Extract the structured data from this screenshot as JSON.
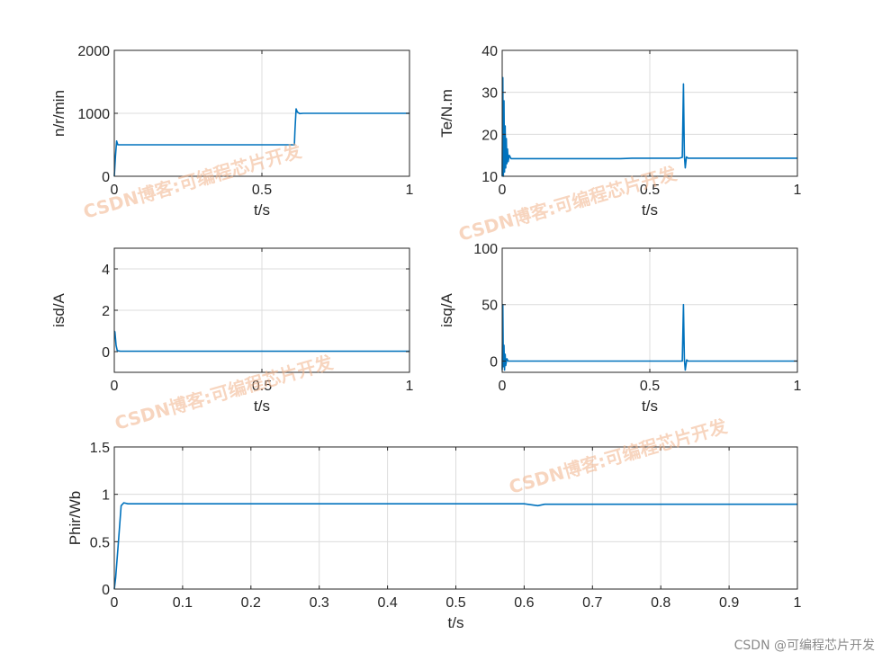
{
  "watermark": {
    "text": "CSDN博客:可编程芯片开发",
    "credit": "CSDN @可编程芯片开发",
    "color": "#f2b48c"
  },
  "colors": {
    "line": "#0072bd",
    "grid": "#dcdcdc",
    "axis": "#262626"
  },
  "chart_data": [
    {
      "type": "line",
      "xlabel": "t/s",
      "ylabel": "n/r/min",
      "xlim": [
        0,
        1
      ],
      "ylim": [
        0,
        2000
      ],
      "xticks": [
        0,
        0.5,
        1
      ],
      "yticks": [
        0,
        1000,
        2000
      ],
      "xticklabels": [
        "0",
        "0.5",
        "1"
      ],
      "yticklabels": [
        "0",
        "1000",
        "2000"
      ],
      "grid": true,
      "series": [
        {
          "x": [
            0,
            0.004,
            0.008,
            0.012,
            0.02,
            0.1,
            0.3,
            0.5,
            0.61,
            0.612,
            0.616,
            0.62,
            0.628,
            0.64,
            0.7,
            0.85,
            1.0
          ],
          "y": [
            0,
            320,
            560,
            500,
            500,
            500,
            500,
            500,
            500,
            720,
            1070,
            1020,
            995,
            1000,
            1000,
            1000,
            1000
          ]
        }
      ]
    },
    {
      "type": "line",
      "xlabel": "t/s",
      "ylabel": "Te/N.m",
      "xlim": [
        0,
        1
      ],
      "ylim": [
        10,
        40
      ],
      "xticks": [
        0,
        0.5,
        1
      ],
      "yticks": [
        10,
        20,
        30,
        40
      ],
      "xticklabels": [
        "0",
        "0.5",
        "1"
      ],
      "yticklabels": [
        "10",
        "20",
        "30",
        "40"
      ],
      "grid": true,
      "series": [
        {
          "x": [
            0,
            0.002,
            0.004,
            0.006,
            0.008,
            0.01,
            0.012,
            0.014,
            0.016,
            0.018,
            0.02,
            0.024,
            0.03,
            0.05,
            0.2,
            0.4,
            0.44,
            0.6,
            0.61,
            0.614,
            0.617,
            0.62,
            0.624,
            0.63,
            0.7,
            0.85,
            1.0
          ],
          "y": [
            10,
            33.5,
            10,
            28,
            11,
            22,
            12,
            19,
            13,
            16.5,
            13.5,
            15,
            14.2,
            14.2,
            14.2,
            14.2,
            14.3,
            14.3,
            14.5,
            32,
            15,
            12,
            14.6,
            14.3,
            14.3,
            14.3,
            14.3
          ]
        }
      ]
    },
    {
      "type": "line",
      "xlabel": "t/s",
      "ylabel": "isd/A",
      "xlim": [
        0,
        1
      ],
      "ylim": [
        -1,
        5
      ],
      "xticks": [
        0,
        0.5,
        1
      ],
      "yticks": [
        0,
        2,
        4
      ],
      "xticklabels": [
        "0",
        "0.5",
        "1"
      ],
      "yticklabels": [
        "0",
        "2",
        "4"
      ],
      "grid": true,
      "series": [
        {
          "x": [
            0,
            0.002,
            0.006,
            0.01,
            0.02,
            0.1,
            0.3,
            0.6,
            0.8,
            1.0
          ],
          "y": [
            1.0,
            0.95,
            0.3,
            0.05,
            0.02,
            0.02,
            0.02,
            0.02,
            0.02,
            0.02
          ]
        }
      ]
    },
    {
      "type": "line",
      "xlabel": "t/s",
      "ylabel": "isq/A",
      "xlim": [
        0,
        1
      ],
      "ylim": [
        -10,
        100
      ],
      "xticks": [
        0,
        0.5,
        1
      ],
      "yticks": [
        0,
        50,
        100
      ],
      "xticklabels": [
        "0",
        "0.5",
        "1"
      ],
      "yticklabels": [
        "0",
        "50",
        "100"
      ],
      "grid": true,
      "series": [
        {
          "x": [
            0,
            0.002,
            0.004,
            0.006,
            0.008,
            0.01,
            0.012,
            0.016,
            0.02,
            0.03,
            0.1,
            0.3,
            0.6,
            0.61,
            0.614,
            0.617,
            0.62,
            0.625,
            0.63,
            0.8,
            1.0
          ],
          "y": [
            -8,
            50,
            -5,
            14,
            -8,
            6,
            -4,
            2,
            0,
            0,
            0,
            0,
            0,
            0,
            50,
            2,
            -8,
            1,
            0,
            0,
            0
          ]
        }
      ]
    },
    {
      "type": "line",
      "xlabel": "t/s",
      "ylabel": "Phir/Wb",
      "xlim": [
        0,
        1
      ],
      "ylim": [
        0,
        1.5
      ],
      "xticks": [
        0,
        0.1,
        0.2,
        0.3,
        0.4,
        0.5,
        0.6,
        0.7,
        0.8,
        0.9,
        1
      ],
      "yticks": [
        0,
        0.5,
        1,
        1.5
      ],
      "xticklabels": [
        "0",
        "0.1",
        "0.2",
        "0.3",
        "0.4",
        "0.5",
        "0.6",
        "0.7",
        "0.8",
        "0.9",
        "1"
      ],
      "yticklabels": [
        "0",
        "0.5",
        "1",
        "1.5"
      ],
      "grid": true,
      "series": [
        {
          "x": [
            0,
            0.002,
            0.006,
            0.01,
            0.014,
            0.02,
            0.1,
            0.3,
            0.5,
            0.6,
            0.62,
            0.63,
            0.8,
            1.0
          ],
          "y": [
            0,
            0.12,
            0.5,
            0.88,
            0.91,
            0.9,
            0.9,
            0.9,
            0.9,
            0.9,
            0.88,
            0.895,
            0.895,
            0.895
          ]
        }
      ]
    }
  ]
}
